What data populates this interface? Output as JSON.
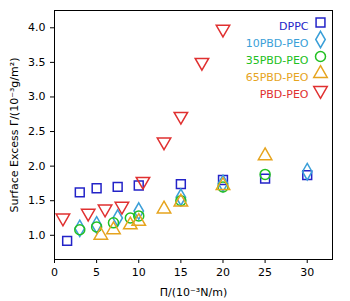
{
  "chart_data": {
    "type": "scatter",
    "x_label": "Π/(10⁻³N/m)",
    "y_label": "Surface Excess Γ/(10⁻³g/m²)",
    "xlim": [
      0,
      33
    ],
    "xticks": [
      0,
      5,
      10,
      15,
      20,
      25,
      30
    ],
    "ylim": [
      0.65,
      4.25
    ],
    "yticks": [
      {
        "value": 1,
        "label": "1.0"
      },
      {
        "value": 1.5,
        "label": "1.5"
      },
      {
        "value": 2,
        "label": "2.0"
      },
      {
        "value": 2.5,
        "label": "2.5"
      },
      {
        "value": 3,
        "label": "3.0"
      },
      {
        "value": 3.5,
        "label": "3.5"
      },
      {
        "value": 4,
        "label": "4.0"
      }
    ],
    "grid": false,
    "legend": "top-right",
    "series": [
      {
        "name": "DPPC",
        "color": "#2323c8",
        "marker": "square",
        "x": [
          1.5,
          3,
          5,
          7.5,
          10,
          15,
          20,
          25,
          30
        ],
        "values": [
          0.92,
          1.62,
          1.68,
          1.7,
          1.72,
          1.74,
          1.8,
          1.82,
          1.87
        ]
      },
      {
        "name": "10PBD-PEO",
        "color": "#3a9fd8",
        "marker": "diamond",
        "x": [
          3,
          5,
          7.5,
          10,
          15,
          20,
          30
        ],
        "values": [
          1.1,
          1.15,
          1.25,
          1.35,
          1.55,
          1.75,
          1.92
        ]
      },
      {
        "name": "35PBD-PEO",
        "color": "#22c022",
        "marker": "circle",
        "x": [
          3,
          5,
          7,
          9,
          10,
          15,
          20,
          25
        ],
        "values": [
          1.08,
          1.12,
          1.18,
          1.25,
          1.28,
          1.5,
          1.7,
          1.88
        ]
      },
      {
        "name": "65PBD-PEO",
        "color": "#e6a41e",
        "marker": "triangle-up",
        "x": [
          5.5,
          7,
          9,
          10,
          13,
          15,
          20,
          25
        ],
        "values": [
          1.0,
          1.08,
          1.15,
          1.2,
          1.38,
          1.48,
          1.72,
          2.15
        ]
      },
      {
        "name": "PBD-PEO",
        "color": "#e03030",
        "marker": "triangle-down",
        "x": [
          1,
          4,
          6,
          8,
          10.5,
          13,
          15,
          17.5,
          20
        ],
        "values": [
          1.25,
          1.32,
          1.38,
          1.42,
          1.78,
          2.35,
          2.72,
          3.5,
          3.98
        ]
      }
    ]
  }
}
